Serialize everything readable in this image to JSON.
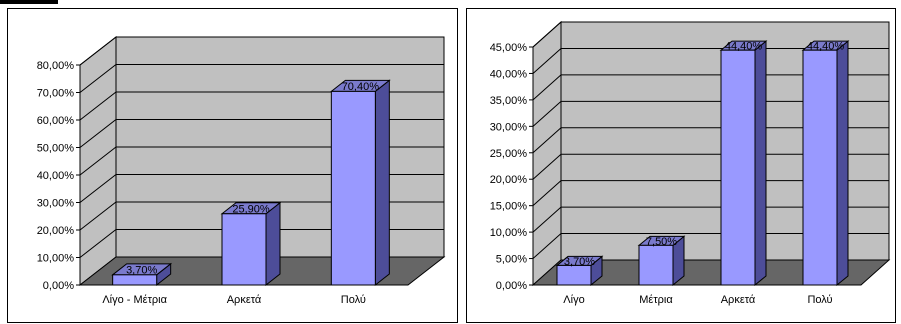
{
  "chart_data": [
    {
      "type": "bar",
      "categories": [
        "Λίγο - Μέτρια",
        "Αρκετά",
        "Πολύ"
      ],
      "values": [
        3.7,
        25.9,
        70.4
      ],
      "data_labels": [
        "3,70%",
        "25,90%",
        "70,40%"
      ],
      "yticks": [
        "0,00%",
        "10,00%",
        "20,00%",
        "30,00%",
        "40,00%",
        "50,00%",
        "60,00%",
        "70,00%",
        "80,00%"
      ],
      "ylim": [
        0,
        80
      ],
      "grid": true,
      "title": "",
      "xlabel": "",
      "ylabel": ""
    },
    {
      "type": "bar",
      "categories": [
        "Λίγο",
        "Μέτρια",
        "Αρκετά",
        "Πολύ"
      ],
      "values": [
        3.7,
        7.5,
        44.4,
        44.4
      ],
      "data_labels": [
        "3,70%",
        "7,50%",
        "44,40%",
        "44,40%"
      ],
      "yticks": [
        "0,00%",
        "5,00%",
        "10,00%",
        "15,00%",
        "20,00%",
        "25,00%",
        "30,00%",
        "35,00%",
        "40,00%",
        "45,00%"
      ],
      "ylim": [
        0,
        45
      ],
      "grid": true,
      "title": "",
      "xlabel": "",
      "ylabel": ""
    }
  ],
  "colors": {
    "bar_front": "#9999ff",
    "bar_side": "#4d4d99",
    "bar_top": "#7a7acc",
    "back_wall": "#c0c0c0",
    "side_wall": "#c0c0c0",
    "floor": "#666666"
  }
}
